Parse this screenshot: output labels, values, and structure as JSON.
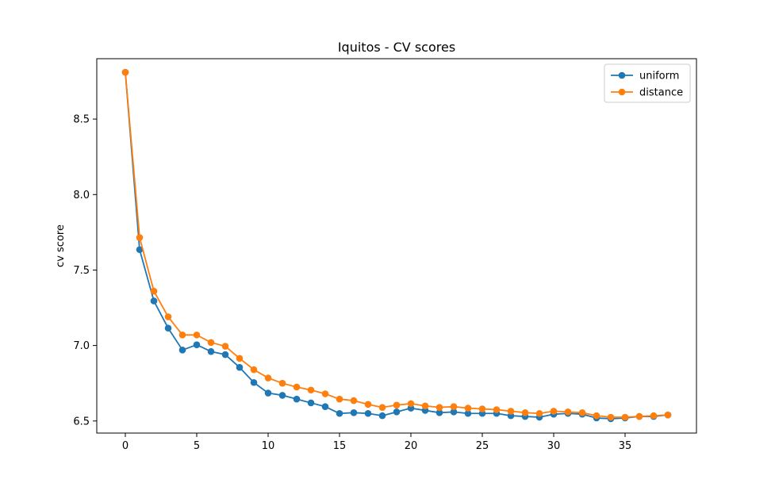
{
  "chart_data": {
    "type": "line",
    "title": "Iquitos - CV scores",
    "xlabel": "",
    "ylabel": "cv score",
    "xlim": [
      -2,
      40
    ],
    "ylim": [
      6.42,
      8.9
    ],
    "xticks": [
      0,
      5,
      10,
      15,
      20,
      25,
      30,
      35
    ],
    "yticks": [
      6.5,
      7.0,
      7.5,
      8.0,
      8.5
    ],
    "yticklabels": [
      "6.5",
      "7.0",
      "7.5",
      "8.0",
      "8.5"
    ],
    "legend_position": "top-right",
    "x": [
      0,
      1,
      2,
      3,
      4,
      5,
      6,
      7,
      8,
      9,
      10,
      11,
      12,
      13,
      14,
      15,
      16,
      17,
      18,
      19,
      20,
      21,
      22,
      23,
      24,
      25,
      26,
      27,
      28,
      29,
      30,
      31,
      32,
      33,
      34,
      35,
      36,
      37,
      38
    ],
    "series": [
      {
        "name": "uniform",
        "color": "#1f77b4",
        "values": [
          8.81,
          7.635,
          7.295,
          7.115,
          6.97,
          7.005,
          6.96,
          6.94,
          6.855,
          6.755,
          6.685,
          6.67,
          6.645,
          6.62,
          6.595,
          6.55,
          6.555,
          6.55,
          6.535,
          6.56,
          6.585,
          6.57,
          6.555,
          6.56,
          6.55,
          6.55,
          6.55,
          6.535,
          6.53,
          6.525,
          6.545,
          6.55,
          6.545,
          6.52,
          6.515,
          6.52,
          6.53,
          6.53,
          6.54
        ]
      },
      {
        "name": "distance",
        "color": "#ff7f0e",
        "values": [
          8.81,
          7.715,
          7.36,
          7.19,
          7.07,
          7.07,
          7.02,
          6.995,
          6.915,
          6.84,
          6.785,
          6.75,
          6.725,
          6.705,
          6.68,
          6.645,
          6.635,
          6.61,
          6.59,
          6.605,
          6.615,
          6.6,
          6.59,
          6.595,
          6.585,
          6.58,
          6.575,
          6.565,
          6.555,
          6.55,
          6.565,
          6.56,
          6.555,
          6.535,
          6.525,
          6.525,
          6.53,
          6.535,
          6.54
        ]
      }
    ]
  }
}
